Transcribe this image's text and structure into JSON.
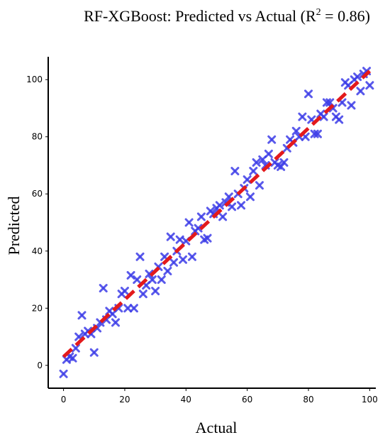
{
  "chart_data": {
    "type": "scatter",
    "title_prefix": "RF-XGBoost: Predicted vs Actual (R",
    "title_sup": "2",
    "title_suffix": " = 0.86)",
    "xlabel": "Actual",
    "ylabel": "Predicted",
    "xlim": [
      -5,
      102
    ],
    "ylim": [
      -8,
      108
    ],
    "xticks": [
      0,
      20,
      40,
      60,
      80,
      100
    ],
    "yticks": [
      0,
      20,
      40,
      60,
      80,
      100
    ],
    "grid": false,
    "legend": "none",
    "colors": {
      "points": "#3d3de8",
      "fit_line": "#e31a1c",
      "axes": "#000000"
    },
    "fit_line": {
      "x": [
        0,
        100
      ],
      "y": [
        3,
        103
      ]
    },
    "points": [
      {
        "x": 0,
        "y": -3
      },
      {
        "x": 1,
        "y": 2
      },
      {
        "x": 2,
        "y": 3
      },
      {
        "x": 3,
        "y": 2.5
      },
      {
        "x": 4,
        "y": 6
      },
      {
        "x": 5,
        "y": 10
      },
      {
        "x": 6,
        "y": 17.5
      },
      {
        "x": 7,
        "y": 11
      },
      {
        "x": 8,
        "y": 12
      },
      {
        "x": 9,
        "y": 11
      },
      {
        "x": 10,
        "y": 4.5
      },
      {
        "x": 11,
        "y": 13
      },
      {
        "x": 12,
        "y": 15
      },
      {
        "x": 13,
        "y": 27
      },
      {
        "x": 14,
        "y": 16
      },
      {
        "x": 15,
        "y": 19
      },
      {
        "x": 16,
        "y": 18
      },
      {
        "x": 17,
        "y": 15
      },
      {
        "x": 18,
        "y": 20
      },
      {
        "x": 19,
        "y": 25
      },
      {
        "x": 20,
        "y": 26
      },
      {
        "x": 21,
        "y": 20
      },
      {
        "x": 22,
        "y": 31.5
      },
      {
        "x": 23,
        "y": 20
      },
      {
        "x": 24,
        "y": 30
      },
      {
        "x": 25,
        "y": 38
      },
      {
        "x": 26,
        "y": 25
      },
      {
        "x": 27,
        "y": 28
      },
      {
        "x": 28,
        "y": 32
      },
      {
        "x": 29,
        "y": 30
      },
      {
        "x": 30,
        "y": 26
      },
      {
        "x": 31,
        "y": 34.5
      },
      {
        "x": 32,
        "y": 30
      },
      {
        "x": 33,
        "y": 38
      },
      {
        "x": 34,
        "y": 33
      },
      {
        "x": 35,
        "y": 45
      },
      {
        "x": 36,
        "y": 36
      },
      {
        "x": 37,
        "y": 40
      },
      {
        "x": 38,
        "y": 44
      },
      {
        "x": 39,
        "y": 37
      },
      {
        "x": 40,
        "y": 43.5
      },
      {
        "x": 41,
        "y": 50
      },
      {
        "x": 42,
        "y": 38
      },
      {
        "x": 43,
        "y": 47
      },
      {
        "x": 44,
        "y": 48
      },
      {
        "x": 45,
        "y": 52
      },
      {
        "x": 46,
        "y": 44
      },
      {
        "x": 47,
        "y": 44.5
      },
      {
        "x": 48,
        "y": 54
      },
      {
        "x": 49,
        "y": 53
      },
      {
        "x": 50,
        "y": 55
      },
      {
        "x": 51,
        "y": 56
      },
      {
        "x": 52,
        "y": 52
      },
      {
        "x": 53,
        "y": 57
      },
      {
        "x": 54,
        "y": 59
      },
      {
        "x": 55,
        "y": 55.5
      },
      {
        "x": 56,
        "y": 68
      },
      {
        "x": 57,
        "y": 60
      },
      {
        "x": 58,
        "y": 56
      },
      {
        "x": 59,
        "y": 62
      },
      {
        "x": 60,
        "y": 65
      },
      {
        "x": 61,
        "y": 59
      },
      {
        "x": 62,
        "y": 68
      },
      {
        "x": 63,
        "y": 71
      },
      {
        "x": 64,
        "y": 63
      },
      {
        "x": 65,
        "y": 72
      },
      {
        "x": 66,
        "y": 70
      },
      {
        "x": 67,
        "y": 74
      },
      {
        "x": 68,
        "y": 79
      },
      {
        "x": 69,
        "y": 71
      },
      {
        "x": 70,
        "y": 70
      },
      {
        "x": 71,
        "y": 69.5
      },
      {
        "x": 72,
        "y": 71
      },
      {
        "x": 73,
        "y": 76
      },
      {
        "x": 74,
        "y": 79
      },
      {
        "x": 75,
        "y": 78
      },
      {
        "x": 76,
        "y": 82
      },
      {
        "x": 77,
        "y": 80
      },
      {
        "x": 78,
        "y": 87
      },
      {
        "x": 79,
        "y": 80
      },
      {
        "x": 80,
        "y": 95
      },
      {
        "x": 81,
        "y": 86
      },
      {
        "x": 82,
        "y": 81
      },
      {
        "x": 83,
        "y": 81
      },
      {
        "x": 84,
        "y": 88
      },
      {
        "x": 85,
        "y": 87
      },
      {
        "x": 86,
        "y": 92
      },
      {
        "x": 87,
        "y": 92
      },
      {
        "x": 88,
        "y": 90
      },
      {
        "x": 89,
        "y": 87
      },
      {
        "x": 90,
        "y": 86
      },
      {
        "x": 91,
        "y": 92
      },
      {
        "x": 92,
        "y": 99
      },
      {
        "x": 93,
        "y": 98
      },
      {
        "x": 94,
        "y": 91
      },
      {
        "x": 95,
        "y": 100
      },
      {
        "x": 96,
        "y": 101
      },
      {
        "x": 97,
        "y": 96
      },
      {
        "x": 98,
        "y": 102
      },
      {
        "x": 99,
        "y": 103
      },
      {
        "x": 100,
        "y": 98
      }
    ]
  }
}
